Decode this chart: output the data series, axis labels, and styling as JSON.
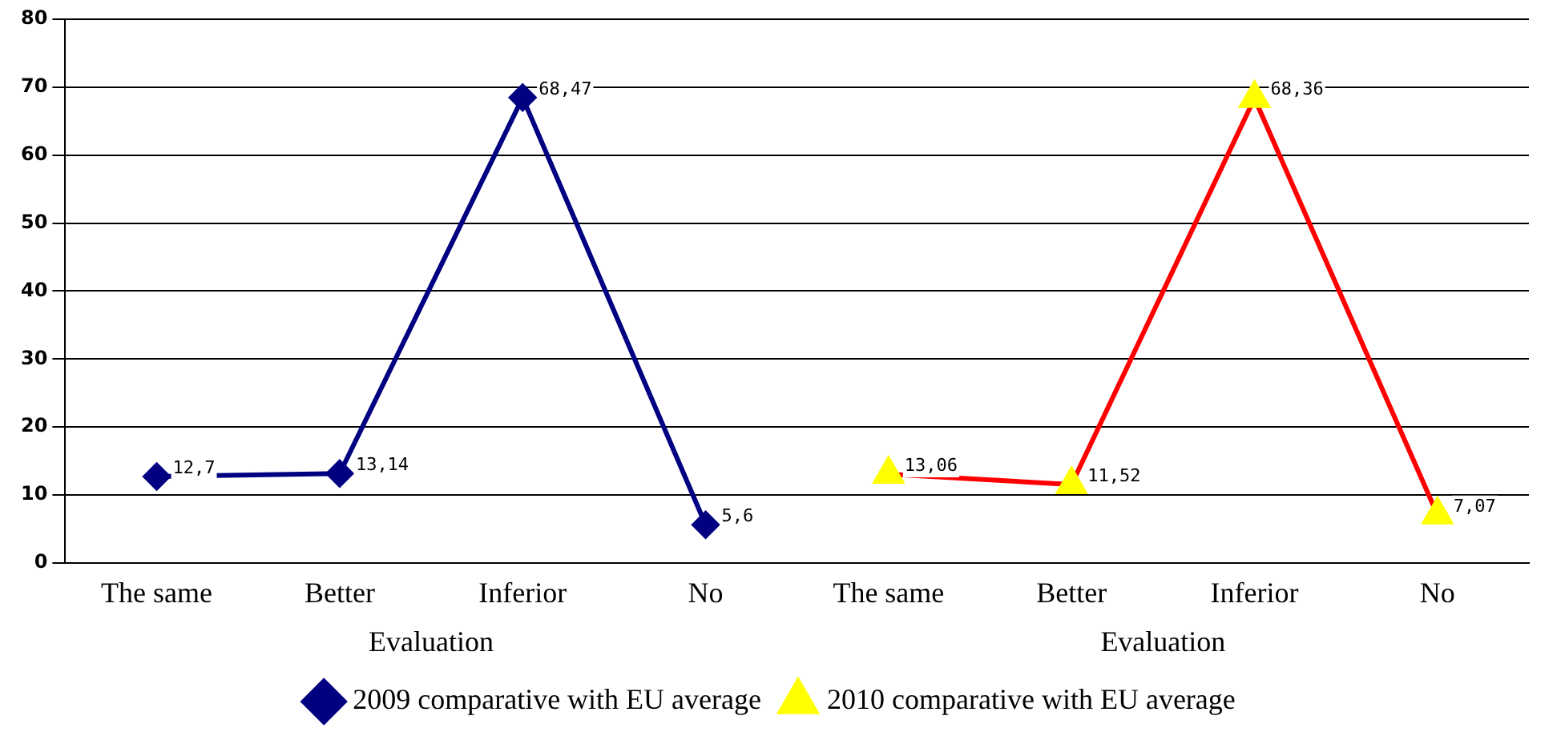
{
  "chart_data": {
    "type": "line",
    "categories": [
      "The same",
      "Better",
      "Inferior",
      "No",
      "The same",
      "Better",
      "Inferior",
      "No"
    ],
    "series": [
      {
        "name": "2009 comparative with EU average",
        "color": "#000080",
        "marker": "diamond",
        "values": [
          12.7,
          13.14,
          68.47,
          5.6,
          null,
          null,
          null,
          null
        ],
        "value_labels": [
          "12,7",
          "13,14",
          "68,47",
          "5,6",
          null,
          null,
          null,
          null
        ]
      },
      {
        "name": "2010 comparative with EU average",
        "color": "#ff0000",
        "colors": [
          "#ffff00",
          "#ffff00",
          "#ffff00",
          "#ffff00",
          "#ffff00",
          "#ffff00",
          "#ffff00",
          "#ffff00"
        ],
        "marker": "triangle",
        "values": [
          null,
          null,
          null,
          null,
          13.06,
          11.52,
          68.36,
          7.07
        ],
        "value_labels": [
          null,
          null,
          null,
          null,
          "13,06",
          "11,52",
          "68,36",
          "7,07"
        ]
      }
    ],
    "annotations": [
      "Evaluation",
      "Evaluation"
    ],
    "ylim": [
      0,
      80
    ],
    "yticks": [
      0,
      10,
      20,
      30,
      40,
      50,
      60,
      70,
      80
    ],
    "grid": "y",
    "legend": "bottom",
    "line_style": "solid"
  }
}
